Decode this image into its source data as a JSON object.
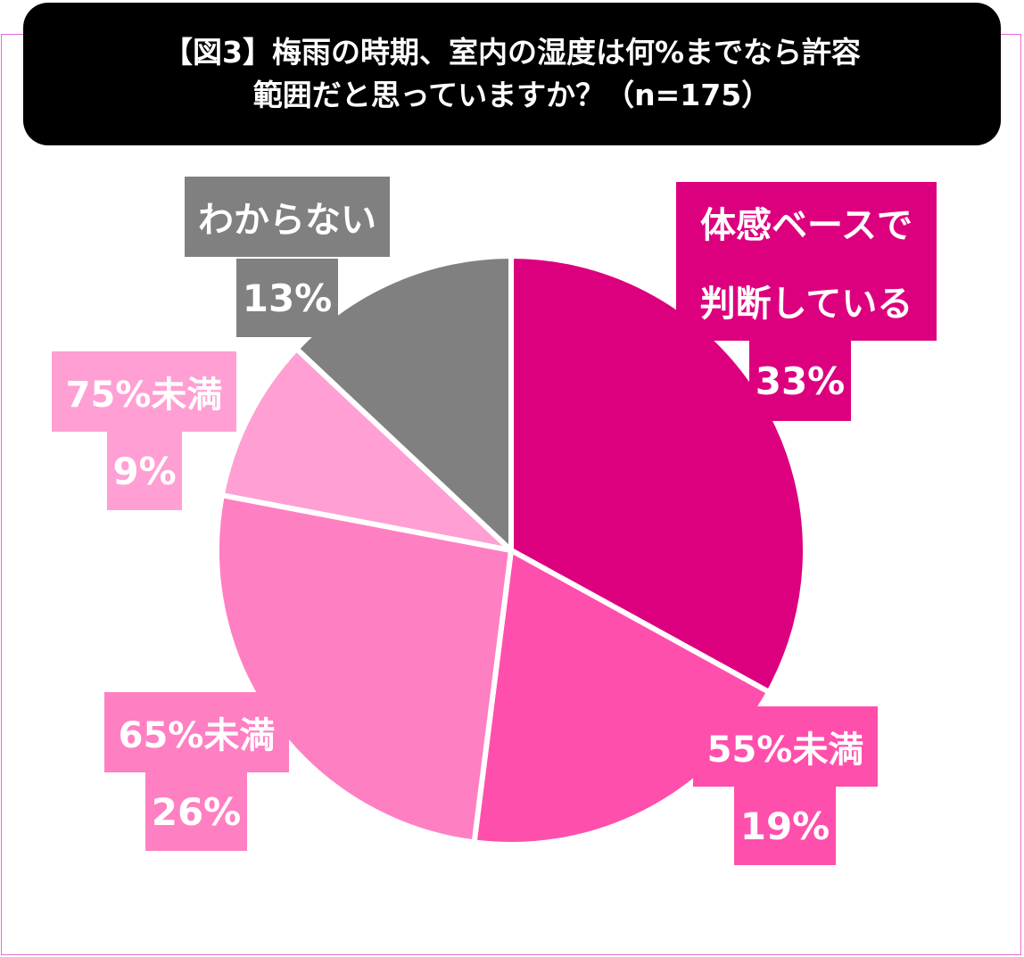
{
  "title": {
    "line1": "【図3】梅雨の時期、室内の湿度は何%までなら許容",
    "line2": "範囲だと思っていますか？（n=175）"
  },
  "chart_data": {
    "type": "pie",
    "slices": [
      {
        "category_lines": [
          "体感ベースで",
          "判断している"
        ],
        "value": 33,
        "value_label": "33%",
        "color": "#dc007f"
      },
      {
        "category_lines": [
          "55%未満"
        ],
        "value": 19,
        "value_label": "19%",
        "color": "#ff4fac"
      },
      {
        "category_lines": [
          "65%未満"
        ],
        "value": 26,
        "value_label": "26%",
        "color": "#ff7fc3"
      },
      {
        "category_lines": [
          "75%未満"
        ],
        "value": 9,
        "value_label": "9%",
        "color": "#ff9fd3"
      },
      {
        "category_lines": [
          "わからない"
        ],
        "value": 13,
        "value_label": "13%",
        "color": "#808080"
      }
    ],
    "start_angle_deg": 0,
    "direction": "clockwise",
    "separator_color": "#ffffff"
  }
}
